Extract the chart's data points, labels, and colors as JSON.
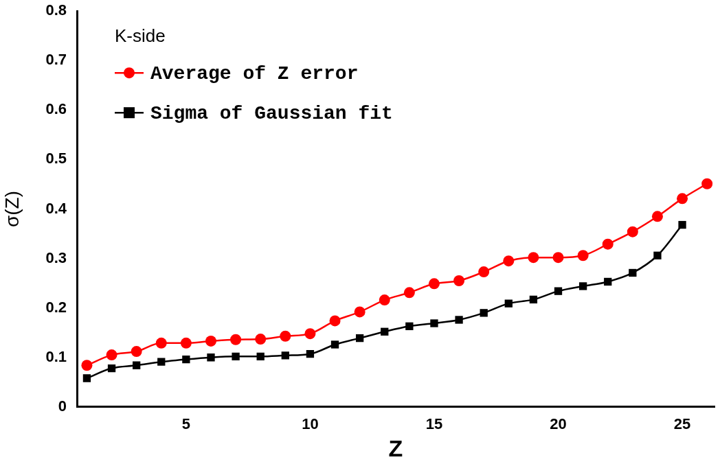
{
  "chart_data": {
    "type": "line",
    "xlabel": "Z",
    "ylabel": "σ(Z)",
    "legend_title": "K-side",
    "legend": "top left",
    "marker": "circle",
    "line_style": "solid",
    "grid": false,
    "x": [
      1,
      2,
      3,
      4,
      5,
      6,
      7,
      8,
      9,
      10,
      11,
      12,
      13,
      14,
      15,
      16,
      17,
      18,
      19,
      20,
      21,
      22,
      23,
      24,
      25,
      26
    ],
    "xlim": [
      0.6,
      26.3
    ],
    "xticks": [
      5,
      10,
      15,
      20,
      25
    ],
    "ylim": [
      0,
      0.8
    ],
    "yticks": [
      0,
      0.1,
      0.2,
      0.3,
      0.4,
      0.5,
      0.6,
      0.7,
      0.8
    ],
    "series": [
      {
        "name": "Average of Z error",
        "color": "#ff0000",
        "values": [
          0.084,
          0.105,
          0.112,
          0.129,
          0.129,
          0.133,
          0.136,
          0.137,
          0.143,
          0.148,
          0.174,
          0.192,
          0.216,
          0.231,
          0.249,
          0.255,
          0.273,
          0.295,
          0.302,
          0.302,
          0.306,
          0.329,
          0.354,
          0.385,
          0.421,
          0.451
        ]
      },
      {
        "name": "Sigma of Gaussian fit",
        "color": "#000000",
        "marker": "square",
        "x": [
          1,
          2,
          3,
          4,
          5,
          6,
          7,
          8,
          9,
          10,
          11,
          12,
          13,
          14,
          15,
          16,
          17,
          18,
          19,
          20,
          21,
          22,
          23,
          24,
          25
        ],
        "values": [
          0.058,
          0.078,
          0.084,
          0.091,
          0.096,
          0.1,
          0.102,
          0.102,
          0.104,
          0.107,
          0.126,
          0.139,
          0.152,
          0.163,
          0.169,
          0.176,
          0.19,
          0.209,
          0.217,
          0.234,
          0.244,
          0.253,
          0.271,
          0.306,
          0.368
        ]
      }
    ]
  }
}
